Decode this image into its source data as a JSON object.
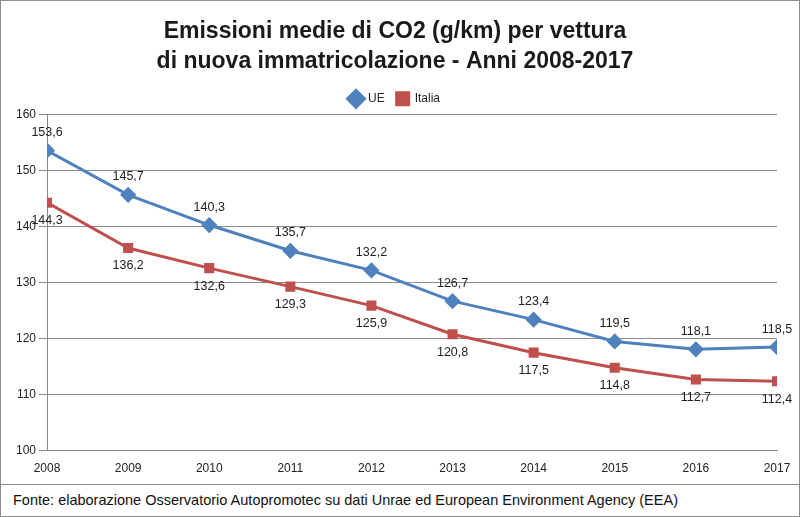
{
  "chart_data": {
    "type": "line",
    "title": [
      "Emissioni medie di CO2 (g/km) per vettura",
      "di nuova immatricolazione - Anni 2008-2017"
    ],
    "categories": [
      "2008",
      "2009",
      "2010",
      "2011",
      "2012",
      "2013",
      "2014",
      "2015",
      "2016",
      "2017"
    ],
    "series": [
      {
        "name": "UE",
        "color": "#4f81bd",
        "marker": "diamond",
        "values": [
          153.6,
          145.7,
          140.3,
          135.7,
          132.2,
          126.7,
          123.4,
          119.5,
          118.1,
          118.5
        ],
        "value_labels": [
          "153,6",
          "145,7",
          "140,3",
          "135,7",
          "132,2",
          "126,7",
          "123,4",
          "119,5",
          "118,1",
          "118,5"
        ]
      },
      {
        "name": "Italia",
        "color": "#c0504d",
        "marker": "square",
        "values": [
          144.3,
          136.2,
          132.6,
          129.3,
          125.9,
          120.8,
          117.5,
          114.8,
          112.7,
          112.4
        ],
        "value_labels": [
          "144,3",
          "136,2",
          "132,6",
          "129,3",
          "125,9",
          "120,8",
          "117,5",
          "114,8",
          "112,7",
          "112,4"
        ]
      }
    ],
    "ylim": [
      100,
      160
    ],
    "yticks": [
      100,
      110,
      120,
      130,
      140,
      150,
      160
    ],
    "grid": true,
    "legend": "top",
    "data_labels": true,
    "source": "Fonte: elaborazione Osservatorio Autopromotec su dati Unrae ed European Environment Agency (EEA)"
  }
}
